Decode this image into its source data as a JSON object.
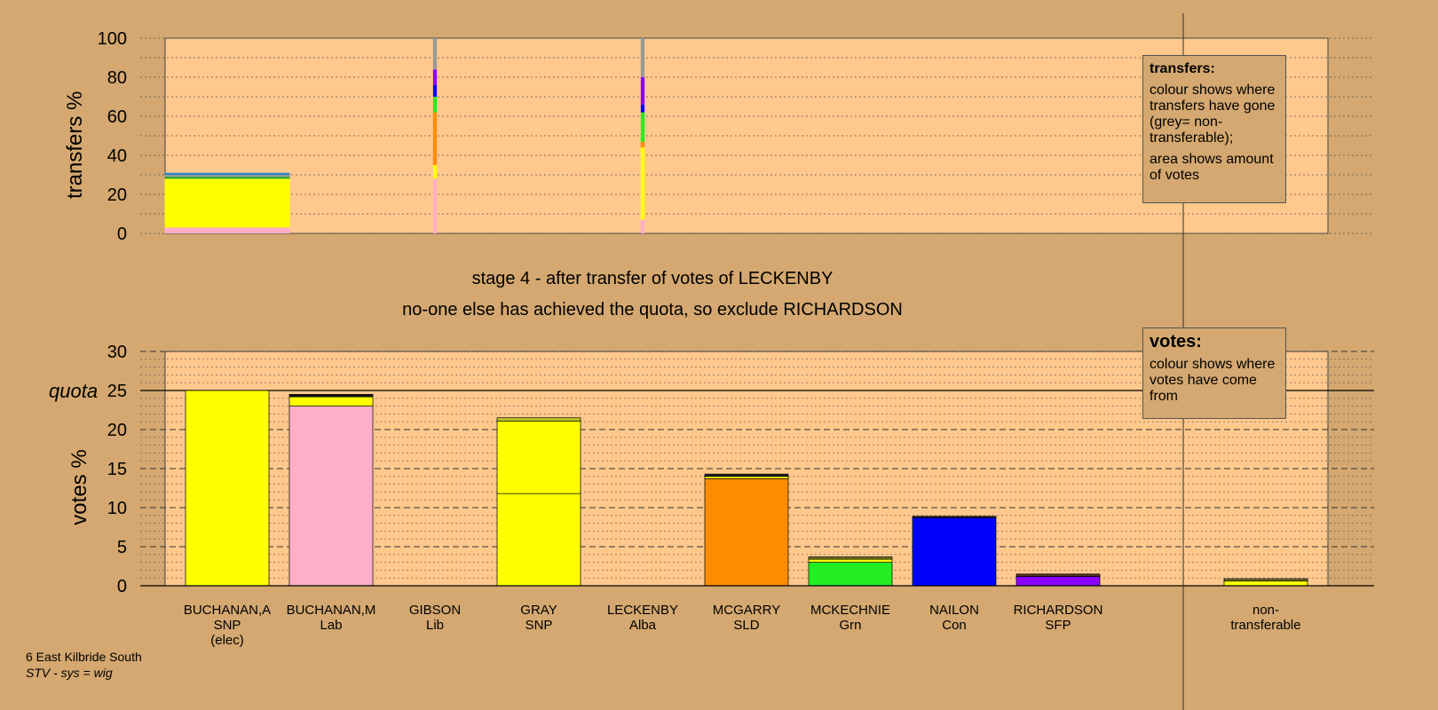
{
  "chart_data": [
    {
      "type": "bar",
      "name": "transfers",
      "ylabel": "transfers %",
      "ylim": [
        0,
        100
      ],
      "yticks": [
        0,
        20,
        40,
        60,
        80,
        100
      ],
      "categories": [
        "BUCHANAN,A",
        "BUCHANAN,M",
        "GIBSON",
        "GRAY",
        "LECKENBY",
        "MCGARRY",
        "MCKECHNIE",
        "NAILON",
        "RICHARDSON"
      ],
      "bars": [
        {
          "category": "BUCHANAN,A",
          "width": 1.0,
          "segments": [
            {
              "color": "#ffaec9",
              "value": 3
            },
            {
              "color": "#ffff00",
              "value": 25
            },
            {
              "color": "#1fa52d",
              "value": 1
            },
            {
              "color": "#999999",
              "value": 1
            },
            {
              "color": "#1e88c9",
              "value": 1
            }
          ]
        },
        {
          "category": "GIBSON",
          "width": 0.03,
          "segments": [
            {
              "color": "#ffaec9",
              "value": 28
            },
            {
              "color": "#ffff00",
              "value": 7
            },
            {
              "color": "#ff8c00",
              "value": 27
            },
            {
              "color": "#22ee22",
              "value": 8
            },
            {
              "color": "#0000ff",
              "value": 6
            },
            {
              "color": "#8b00ff",
              "value": 8
            },
            {
              "color": "#999999",
              "value": 16
            }
          ]
        },
        {
          "category": "LECKENBY",
          "width": 0.03,
          "segments": [
            {
              "color": "#ffaec9",
              "value": 7
            },
            {
              "color": "#ffff00",
              "value": 37
            },
            {
              "color": "#ff8c00",
              "value": 3
            },
            {
              "color": "#22ee22",
              "value": 15
            },
            {
              "color": "#0000ff",
              "value": 4
            },
            {
              "color": "#8b00ff",
              "value": 14
            },
            {
              "color": "#999999",
              "value": 20
            }
          ]
        }
      ]
    },
    {
      "type": "bar",
      "name": "votes",
      "ylabel": "votes %",
      "ylim": [
        0,
        30
      ],
      "yticks": [
        0,
        5,
        10,
        15,
        20,
        25,
        30
      ],
      "quota": 25,
      "quota_label": "quota",
      "categories": [
        "BUCHANAN,A",
        "BUCHANAN,M",
        "GIBSON",
        "GRAY",
        "LECKENBY",
        "MCGARRY",
        "MCKECHNIE",
        "NAILON",
        "RICHARDSON",
        "non-transferable"
      ],
      "bars": [
        {
          "category": "BUCHANAN,A",
          "segments": [
            {
              "color": "#ffff00",
              "value": 25
            }
          ]
        },
        {
          "category": "BUCHANAN,M",
          "segments": [
            {
              "color": "#ffaec9",
              "value": 23
            },
            {
              "color": "#ffff00",
              "value": 1.2
            },
            {
              "color": "#111111",
              "value": 0.3
            }
          ]
        },
        {
          "category": "GIBSON",
          "segments": []
        },
        {
          "category": "GRAY",
          "segments": [
            {
              "color": "#ffff00",
              "value": 11.8
            },
            {
              "color": "#ffff00",
              "value": 9.3
            },
            {
              "color": "#c7c72a",
              "value": 0.4
            }
          ]
        },
        {
          "category": "LECKENBY",
          "segments": []
        },
        {
          "category": "MCGARRY",
          "segments": [
            {
              "color": "#ff8c00",
              "value": 13.7
            },
            {
              "color": "#ffff00",
              "value": 0.3
            },
            {
              "color": "#222222",
              "value": 0.3
            }
          ]
        },
        {
          "category": "MCKECHNIE",
          "segments": [
            {
              "color": "#22ee22",
              "value": 3.0
            },
            {
              "color": "#ffff00",
              "value": 0.4
            },
            {
              "color": "#777722",
              "value": 0.3
            }
          ]
        },
        {
          "category": "NAILON",
          "segments": [
            {
              "color": "#0000ff",
              "value": 8.7
            },
            {
              "color": "#222244",
              "value": 0.2
            }
          ]
        },
        {
          "category": "RICHARDSON",
          "segments": [
            {
              "color": "#8b00ff",
              "value": 1.2
            },
            {
              "color": "#553322",
              "value": 0.3
            }
          ]
        },
        {
          "category": "non-transferable",
          "segments": [
            {
              "color": "#ffff00",
              "value": 0.6
            },
            {
              "color": "#777722",
              "value": 0.3
            }
          ]
        }
      ]
    }
  ],
  "candidates": [
    {
      "name": "BUCHANAN,A",
      "party": "SNP",
      "note": "(elec)"
    },
    {
      "name": "BUCHANAN,M",
      "party": "Lab",
      "note": ""
    },
    {
      "name": "GIBSON",
      "party": "Lib",
      "note": ""
    },
    {
      "name": "GRAY",
      "party": "SNP",
      "note": ""
    },
    {
      "name": "LECKENBY",
      "party": "Alba",
      "note": ""
    },
    {
      "name": "MCGARRY",
      "party": "SLD",
      "note": ""
    },
    {
      "name": "MCKECHNIE",
      "party": "Grn",
      "note": ""
    },
    {
      "name": "NAILON",
      "party": "Con",
      "note": ""
    },
    {
      "name": "RICHARDSON",
      "party": "SFP",
      "note": ""
    }
  ],
  "nontransferable": {
    "line1": "non-",
    "line2": "transferable"
  },
  "stage": {
    "line1": "stage 4 - after transfer of votes of LECKENBY",
    "line2": "no-one else has achieved the quota, so exclude RICHARDSON"
  },
  "legend_transfers": {
    "title": "transfers:",
    "text1": "colour shows where transfers have gone (grey= non-transferable);",
    "text2": "area shows amount of votes"
  },
  "legend_votes": {
    "title": "votes:",
    "text1": "colour shows where votes have come from"
  },
  "footer": {
    "ward": "6 East Kilbride South",
    "system": "STV - sys = wig"
  },
  "colors": {
    "background": "#d4a870",
    "plot_background": "#ffc88c"
  }
}
